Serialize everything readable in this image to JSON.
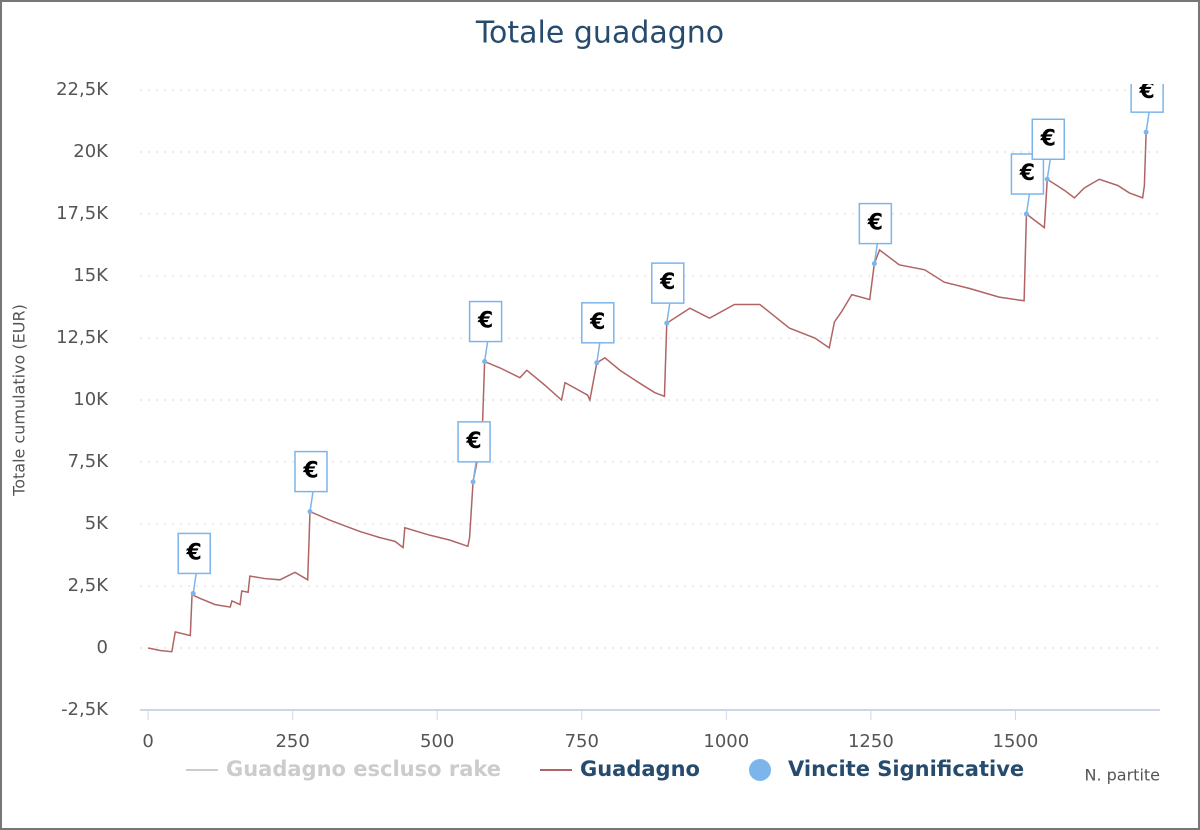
{
  "chart_data": {
    "type": "line",
    "title": "Totale guadagno",
    "y_label": "Totale cumulativo (EUR)",
    "x_label": "N. partite",
    "xlim": [
      -14,
      1750
    ],
    "xticks": [
      0,
      250,
      500,
      750,
      1000,
      1250,
      1500
    ],
    "ylim": [
      -2500,
      22500
    ],
    "yticks": [
      {
        "value": -2500,
        "label": "-2,5K"
      },
      {
        "value": 0,
        "label": "0"
      },
      {
        "value": 2500,
        "label": "2,5K"
      },
      {
        "value": 5000,
        "label": "5K"
      },
      {
        "value": 7500,
        "label": "7,5K"
      },
      {
        "value": 10000,
        "label": "10K"
      },
      {
        "value": 12500,
        "label": "12,5K"
      },
      {
        "value": 15000,
        "label": "15K"
      },
      {
        "value": 17500,
        "label": "17,5K"
      },
      {
        "value": 20000,
        "label": "20K"
      },
      {
        "value": 22500,
        "label": "22,5K"
      }
    ],
    "grid": true,
    "series": [
      {
        "name": "Guadagno escluso rake",
        "color": "#cccccc",
        "visible": false
      },
      {
        "name": "Guadagno",
        "color": "#b06464",
        "x": [
          0,
          21,
          41,
          47,
          73,
          76,
          90,
          116,
          142,
          145,
          159,
          162,
          173,
          176,
          202,
          228,
          254,
          276,
          280,
          315,
          366,
          401,
          427,
          441,
          444,
          487,
          522,
          553,
          556,
          562,
          570,
          577,
          582,
          608,
          643,
          655,
          686,
          715,
          721,
          760,
          764,
          776,
          790,
          816,
          842,
          876,
          893,
          897,
          937,
          971,
          1014,
          1058,
          1109,
          1153,
          1178,
          1187,
          1199,
          1217,
          1248,
          1256,
          1265,
          1299,
          1343,
          1377,
          1420,
          1472,
          1515,
          1519,
          1550,
          1555,
          1585,
          1602,
          1619,
          1645,
          1677,
          1697,
          1720,
          1723,
          1726
        ],
        "values": [
          0,
          -100,
          -150,
          650,
          500,
          2150,
          2000,
          1750,
          1650,
          1900,
          1750,
          2300,
          2250,
          2900,
          2800,
          2750,
          3050,
          2750,
          5500,
          5150,
          4700,
          4450,
          4300,
          4050,
          4850,
          4550,
          4350,
          4100,
          4450,
          6700,
          7650,
          8100,
          11550,
          11300,
          10900,
          11200,
          10600,
          10000,
          10700,
          10200,
          10000,
          11500,
          11700,
          11200,
          10800,
          10300,
          10150,
          13100,
          13700,
          13300,
          13850,
          13850,
          12900,
          12500,
          12100,
          13150,
          13550,
          14250,
          14050,
          15500,
          16050,
          15450,
          15250,
          14750,
          14500,
          14150,
          14000,
          17500,
          16950,
          18900,
          18450,
          18150,
          18550,
          18900,
          18650,
          18350,
          18150,
          18650,
          20800
        ]
      },
      {
        "name": "Vincite Significative",
        "color": "#7cb5ec",
        "flag": "€",
        "x": [
          78,
          280,
          562,
          582,
          776,
          897,
          1256,
          1519,
          1555,
          1726
        ],
        "values": [
          2200,
          5500,
          6700,
          11550,
          11500,
          13100,
          15500,
          17500,
          18900,
          20800
        ]
      }
    ]
  }
}
